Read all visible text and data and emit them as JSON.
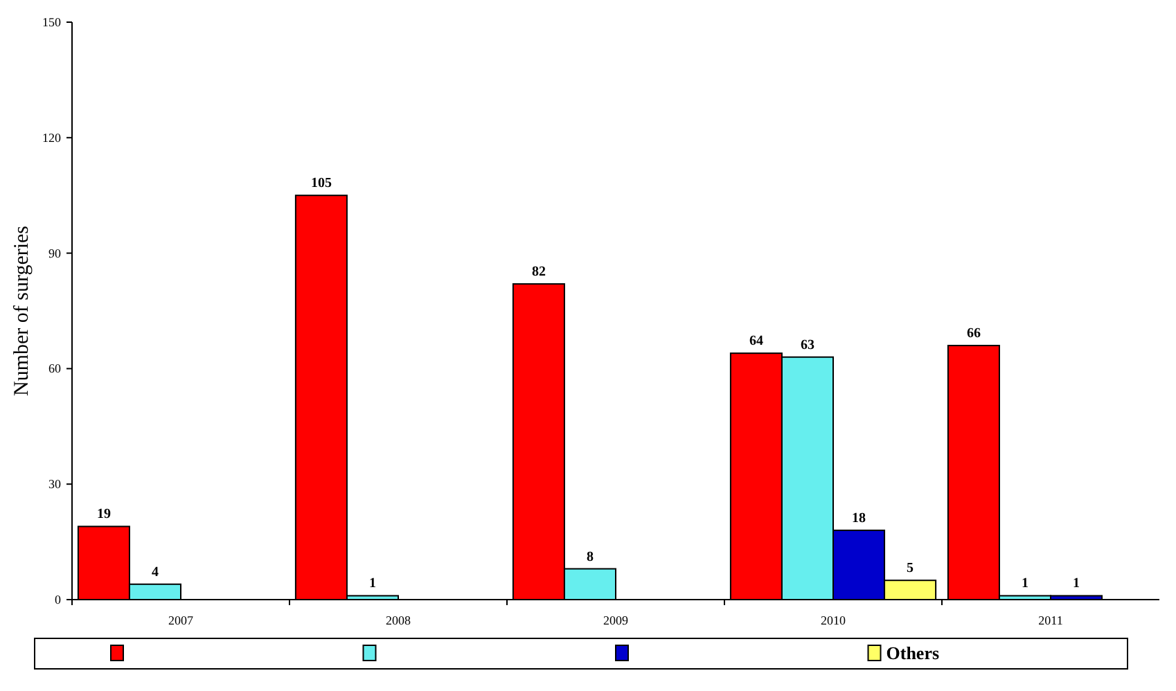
{
  "chart_data": {
    "type": "bar",
    "ylabel": "Number of surgeries",
    "categories": [
      "2007",
      "2008",
      "2009",
      "2010",
      "2011"
    ],
    "series": [
      {
        "color": "#ff0000",
        "values": [
          19,
          105,
          82,
          64,
          66
        ]
      },
      {
        "color": "#66eeee",
        "values": [
          4,
          1,
          8,
          63,
          1
        ]
      },
      {
        "color": "#0000cc",
        "values": [
          null,
          null,
          null,
          18,
          1
        ]
      },
      {
        "name": "Others",
        "color": "#ffff66",
        "values": [
          null,
          null,
          null,
          5,
          null
        ]
      }
    ],
    "ylim": [
      0,
      150
    ],
    "yticks": [
      0,
      30,
      60,
      90,
      120,
      150
    ],
    "data_labels": true,
    "legend": "bottom",
    "grid": false
  }
}
